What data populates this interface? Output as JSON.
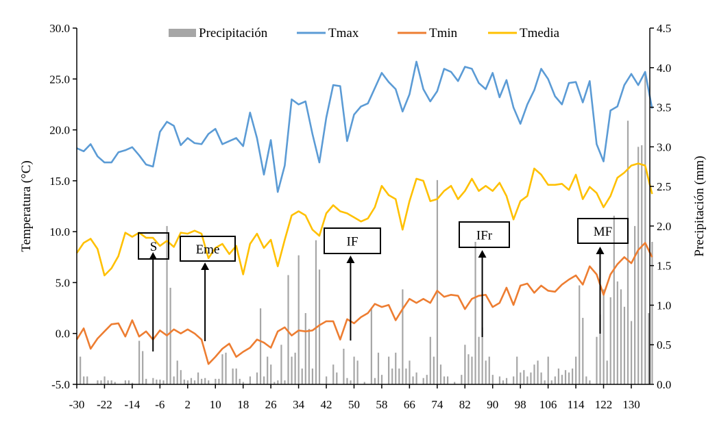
{
  "chart_data": {
    "type": "line",
    "xlabel": "",
    "ylabel": "Temperatura (°C)",
    "y2label": "Precipitación (mm)",
    "xlim": [
      -30,
      136
    ],
    "ylim": [
      -5,
      30
    ],
    "y2lim": [
      0,
      4.5
    ],
    "grid": false,
    "legend_position": "top",
    "x_ticks": [
      -30,
      -22,
      -14,
      -6,
      2,
      10,
      18,
      26,
      34,
      42,
      50,
      58,
      66,
      74,
      82,
      90,
      98,
      106,
      114,
      122,
      130
    ],
    "y_ticks": [
      "-5.0",
      "0.0",
      "5.0",
      "10.0",
      "15.0",
      "20.0",
      "25.0",
      "30.0"
    ],
    "y2_ticks": [
      "0.0",
      "0.5",
      "1.0",
      "1.5",
      "2.0",
      "2.5",
      "3.0",
      "3.5",
      "4.0",
      "4.5"
    ],
    "x": [
      -30,
      -28,
      -26,
      -24,
      -22,
      -20,
      -18,
      -16,
      -14,
      -12,
      -10,
      -8,
      -6,
      -4,
      -2,
      0,
      2,
      4,
      6,
      8,
      10,
      12,
      14,
      16,
      18,
      20,
      22,
      24,
      26,
      28,
      30,
      32,
      34,
      36,
      38,
      40,
      42,
      44,
      46,
      48,
      50,
      52,
      54,
      56,
      58,
      60,
      62,
      64,
      66,
      68,
      70,
      72,
      74,
      76,
      78,
      80,
      82,
      84,
      86,
      88,
      90,
      92,
      94,
      96,
      98,
      100,
      102,
      104,
      106,
      108,
      110,
      112,
      114,
      116,
      118,
      120,
      122,
      124,
      126,
      128,
      130,
      132,
      134,
      136
    ],
    "series": [
      {
        "name": "Tmax",
        "color": "#5b9bd5",
        "axis": "left",
        "values": [
          18.2,
          17.9,
          18.6,
          17.4,
          16.8,
          16.8,
          17.8,
          18.0,
          18.3,
          17.5,
          16.6,
          16.4,
          19.8,
          20.8,
          20.4,
          18.5,
          19.2,
          18.7,
          18.6,
          19.6,
          20.1,
          18.6,
          18.9,
          19.2,
          18.4,
          21.7,
          19.2,
          15.6,
          19.0,
          13.9,
          16.5,
          23.0,
          22.5,
          22.8,
          19.6,
          16.8,
          21.2,
          24.4,
          24.3,
          18.9,
          21.5,
          22.3,
          22.6,
          24.1,
          25.6,
          24.7,
          24.0,
          21.8,
          23.5,
          26.7,
          24.0,
          22.8,
          23.8,
          26.0,
          25.7,
          24.8,
          26.2,
          26.0,
          24.6,
          24.0,
          25.6,
          23.2,
          24.9,
          22.2,
          20.6,
          22.5,
          23.9,
          26.0,
          25.0,
          23.3,
          22.5,
          24.6,
          24.7,
          22.7,
          24.8,
          18.6,
          16.9,
          21.9,
          22.3,
          24.4,
          25.5,
          24.4,
          25.7,
          22.1
        ]
      },
      {
        "name": "Tmin",
        "color": "#ed7d31",
        "axis": "left",
        "values": [
          -0.6,
          0.5,
          -1.5,
          -0.5,
          0.2,
          0.9,
          1.0,
          -0.3,
          1.3,
          -0.3,
          0.2,
          -0.6,
          0.3,
          -0.2,
          0.4,
          0.0,
          0.4,
          0.0,
          -0.6,
          -3.0,
          -2.3,
          -1.5,
          -1.0,
          -2.3,
          -1.8,
          -1.4,
          -0.6,
          -0.9,
          -1.4,
          0.2,
          0.6,
          -0.2,
          0.3,
          0.2,
          0.3,
          0.8,
          1.2,
          1.2,
          -0.6,
          1.4,
          1.0,
          1.6,
          2.0,
          2.9,
          2.6,
          2.8,
          1.3,
          2.4,
          3.4,
          3.0,
          3.4,
          3.0,
          4.2,
          3.6,
          3.8,
          3.7,
          2.4,
          3.4,
          3.7,
          3.8,
          2.6,
          3.0,
          4.5,
          2.8,
          4.7,
          4.9,
          4.0,
          4.7,
          4.2,
          4.1,
          4.8,
          5.3,
          5.7,
          4.8,
          6.6,
          5.8,
          3.8,
          5.8,
          6.8,
          7.5,
          6.9,
          8.2,
          8.9,
          7.5
        ]
      },
      {
        "name": "Tmedia",
        "color": "#ffc000",
        "axis": "left",
        "values": [
          7.9,
          8.9,
          9.3,
          8.3,
          5.7,
          6.4,
          7.6,
          9.9,
          9.5,
          9.9,
          9.4,
          9.4,
          8.6,
          9.1,
          8.5,
          9.9,
          9.8,
          10.1,
          9.8,
          7.4,
          8.4,
          8.8,
          7.8,
          8.6,
          5.8,
          8.8,
          9.8,
          8.4,
          9.2,
          6.6,
          9.2,
          11.6,
          12.0,
          11.6,
          10.2,
          9.6,
          11.8,
          12.6,
          12.0,
          11.8,
          11.4,
          11.0,
          11.3,
          12.4,
          14.5,
          13.6,
          13.2,
          10.2,
          13.0,
          15.2,
          15.0,
          13.0,
          13.2,
          14.0,
          14.5,
          13.2,
          14.0,
          15.2,
          14.0,
          14.5,
          14.0,
          14.8,
          13.5,
          11.2,
          13.0,
          13.5,
          16.2,
          15.6,
          14.6,
          14.6,
          14.7,
          14.1,
          15.6,
          13.2,
          14.4,
          13.8,
          12.4,
          13.5,
          15.3,
          15.8,
          16.5,
          16.7,
          16.5,
          13.7
        ]
      }
    ],
    "precipitation": {
      "name": "Precipitación",
      "color": "#a6a6a6",
      "axis": "right",
      "points": [
        [
          -29,
          0.35
        ],
        [
          -28,
          0.1
        ],
        [
          -27,
          0.1
        ],
        [
          -24,
          0.05
        ],
        [
          -23,
          0.05
        ],
        [
          -22,
          0.1
        ],
        [
          -21,
          0.05
        ],
        [
          -20,
          0.05
        ],
        [
          -19,
          0.03
        ],
        [
          -16,
          0.05
        ],
        [
          -15,
          0.05
        ],
        [
          -14,
          0.02
        ],
        [
          -12,
          0.55
        ],
        [
          -11,
          0.42
        ],
        [
          -10,
          0.07
        ],
        [
          -8,
          0.08
        ],
        [
          -7,
          0.06
        ],
        [
          -6,
          0.06
        ],
        [
          -5,
          0.05
        ],
        [
          -4,
          2.0
        ],
        [
          -3,
          1.22
        ],
        [
          -2,
          0.1
        ],
        [
          -1,
          0.3
        ],
        [
          0,
          0.18
        ],
        [
          1,
          0.06
        ],
        [
          2,
          0.05
        ],
        [
          3,
          0.08
        ],
        [
          4,
          0.05
        ],
        [
          5,
          0.15
        ],
        [
          6,
          0.07
        ],
        [
          7,
          0.08
        ],
        [
          8,
          0.05
        ],
        [
          10,
          0.07
        ],
        [
          11,
          0.07
        ],
        [
          12,
          0.38
        ],
        [
          13,
          0.4
        ],
        [
          15,
          0.2
        ],
        [
          16,
          0.2
        ],
        [
          17,
          0.07
        ],
        [
          18,
          0.03
        ],
        [
          20,
          0.1
        ],
        [
          22,
          0.15
        ],
        [
          23,
          0.96
        ],
        [
          24,
          0.1
        ],
        [
          25,
          0.35
        ],
        [
          26,
          0.25
        ],
        [
          27,
          0.03
        ],
        [
          28,
          0.05
        ],
        [
          29,
          0.5
        ],
        [
          30,
          0.05
        ],
        [
          31,
          1.38
        ],
        [
          32,
          0.35
        ],
        [
          33,
          0.4
        ],
        [
          34,
          1.63
        ],
        [
          35,
          0.2
        ],
        [
          36,
          0.9
        ],
        [
          37,
          0.7
        ],
        [
          38,
          0.2
        ],
        [
          39,
          1.82
        ],
        [
          40,
          1.45
        ],
        [
          42,
          0.1
        ],
        [
          44,
          0.25
        ],
        [
          45,
          0.15
        ],
        [
          47,
          0.45
        ],
        [
          48,
          0.08
        ],
        [
          49,
          0.05
        ],
        [
          50,
          0.35
        ],
        [
          51,
          0.3
        ],
        [
          53,
          0.03
        ],
        [
          55,
          0.95
        ],
        [
          56,
          0.08
        ],
        [
          57,
          0.4
        ],
        [
          58,
          0.12
        ],
        [
          60,
          0.35
        ],
        [
          61,
          0.2
        ],
        [
          62,
          0.4
        ],
        [
          63,
          0.2
        ],
        [
          64,
          1.2
        ],
        [
          65,
          0.2
        ],
        [
          66,
          0.3
        ],
        [
          67,
          0.1
        ],
        [
          68,
          0.15
        ],
        [
          70,
          0.08
        ],
        [
          71,
          0.12
        ],
        [
          72,
          0.6
        ],
        [
          73,
          0.35
        ],
        [
          74,
          2.58
        ],
        [
          75,
          0.25
        ],
        [
          76,
          0.1
        ],
        [
          77,
          0.1
        ],
        [
          79,
          0.03
        ],
        [
          81,
          0.12
        ],
        [
          82,
          0.5
        ],
        [
          83,
          0.38
        ],
        [
          84,
          0.35
        ],
        [
          85,
          1.8
        ],
        [
          86,
          0.6
        ],
        [
          87,
          0.72
        ],
        [
          88,
          0.3
        ],
        [
          89,
          0.35
        ],
        [
          90,
          0.12
        ],
        [
          92,
          0.1
        ],
        [
          93,
          0.05
        ],
        [
          94,
          0.08
        ],
        [
          96,
          0.1
        ],
        [
          97,
          0.35
        ],
        [
          98,
          0.15
        ],
        [
          99,
          0.18
        ],
        [
          100,
          0.1
        ],
        [
          101,
          0.15
        ],
        [
          102,
          0.25
        ],
        [
          103,
          0.3
        ],
        [
          104,
          0.15
        ],
        [
          105,
          0.05
        ],
        [
          106,
          0.35
        ],
        [
          107,
          0.05
        ],
        [
          108,
          0.1
        ],
        [
          109,
          0.2
        ],
        [
          110,
          0.12
        ],
        [
          111,
          0.18
        ],
        [
          112,
          0.15
        ],
        [
          113,
          0.2
        ],
        [
          114,
          0.35
        ],
        [
          115,
          1.25
        ],
        [
          116,
          0.84
        ],
        [
          117,
          0.1
        ],
        [
          118,
          0.05
        ],
        [
          120,
          0.6
        ],
        [
          121,
          0.88
        ],
        [
          122,
          1.2
        ],
        [
          123,
          0.3
        ],
        [
          124,
          1.1
        ],
        [
          125,
          2.13
        ],
        [
          126,
          1.3
        ],
        [
          127,
          1.2
        ],
        [
          128,
          0.98
        ],
        [
          129,
          3.33
        ],
        [
          130,
          0.8
        ],
        [
          131,
          2.0
        ],
        [
          132,
          3.0
        ],
        [
          133,
          3.02
        ],
        [
          134,
          3.95
        ],
        [
          135,
          0.9
        ],
        [
          136,
          1.8
        ]
      ]
    },
    "annotations": [
      {
        "label": "S",
        "x": -8
      },
      {
        "label": "Eme",
        "x": 7
      },
      {
        "label": "IF",
        "x": 49
      },
      {
        "label": "IFr",
        "x": 87
      },
      {
        "label": "MF",
        "x": 121
      }
    ]
  }
}
